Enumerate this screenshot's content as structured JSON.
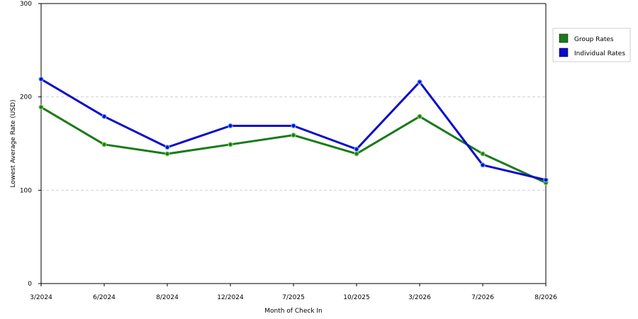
{
  "chart_data": {
    "type": "line",
    "title": "",
    "xlabel": "Month of Check In",
    "ylabel": "Lowest Average Rate (USD)",
    "categories": [
      "3/2024",
      "6/2024",
      "8/2024",
      "12/2024",
      "7/2025",
      "10/2025",
      "3/2026",
      "7/2026",
      "8/2026"
    ],
    "ylim": [
      0,
      300
    ],
    "yticks": [
      0,
      100,
      200,
      300
    ],
    "grid": "horizontal-dashed",
    "legend_position": "top-right",
    "series": [
      {
        "name": "Group Rates",
        "color": "#1a7a1a",
        "values": [
          189,
          149,
          139,
          149,
          159,
          139,
          179,
          139,
          108
        ]
      },
      {
        "name": "Individual Rates",
        "color": "#0b0bcc",
        "values": [
          219,
          179,
          146,
          169,
          169,
          144,
          216,
          127,
          111
        ]
      }
    ]
  }
}
